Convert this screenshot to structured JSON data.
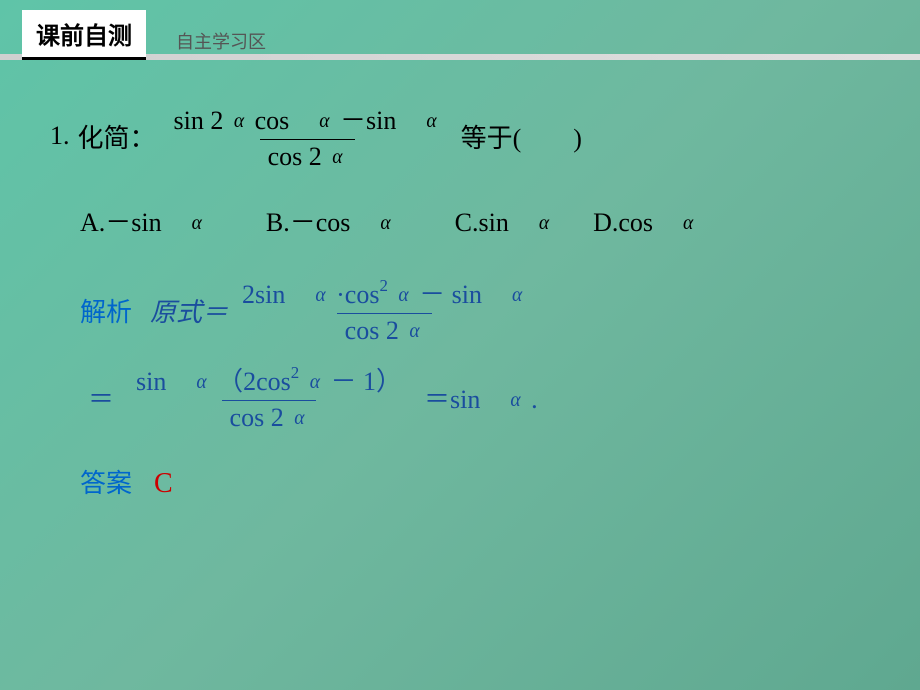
{
  "header": {
    "main": "课前自测",
    "sub": "自主学习区"
  },
  "question": {
    "number": "1.",
    "label": "化简：",
    "frac_num": "sin 2 α cos　α －sin　α",
    "frac_den": "cos 2 α",
    "after": "等于(　　)"
  },
  "options": {
    "a": "A.－sin　α",
    "b": "B.－cos　α",
    "c": "C.sin　α",
    "d": "D.cos　α"
  },
  "solution": {
    "label": "解析",
    "prefix": "原式＝",
    "step1_num_html": "2sin　α ·cos² α － sin　α",
    "step1_den": "cos 2 α",
    "step2_num": "sin　α （2cos² α － 1）",
    "step2_den": "cos 2 α",
    "result": "＝sin　α ."
  },
  "answer": {
    "label": "答案",
    "value": "C"
  },
  "colors": {
    "blue_label": "#0066cc",
    "blue_math": "#1a4d9e",
    "red": "#cc0000",
    "bg_start": "#5fc4a8",
    "bg_end": "#5fa890"
  },
  "fonts": {
    "header_main_size": 24,
    "header_sub_size": 18,
    "body_size": 26,
    "answer_size": 28
  }
}
